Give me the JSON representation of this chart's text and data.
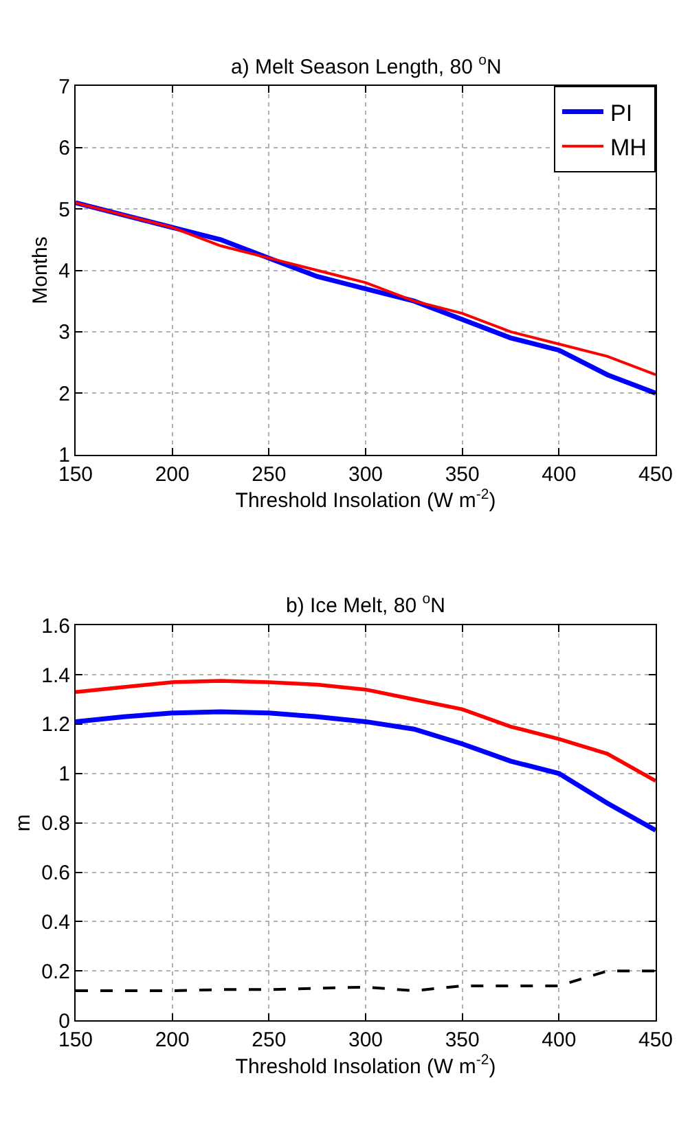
{
  "chart_data": [
    {
      "type": "line",
      "title": "a) Melt Season Length, 80 $^{o}$N",
      "xlabel": "Threshold Insolation (W m$^{-2}$)",
      "ylabel": "Months",
      "x": [
        150,
        175,
        200,
        225,
        250,
        275,
        300,
        325,
        350,
        375,
        400,
        425,
        450
      ],
      "series": [
        {
          "name": "PI",
          "color": "#0000ff",
          "values": [
            5.1,
            4.9,
            4.7,
            4.5,
            4.2,
            3.9,
            3.7,
            3.5,
            3.2,
            2.9,
            2.7,
            2.3,
            2.0
          ]
        },
        {
          "name": "MH",
          "color": "#ff0000",
          "values": [
            5.1,
            4.9,
            4.7,
            4.4,
            4.2,
            4.0,
            3.8,
            3.5,
            3.3,
            3.0,
            2.8,
            2.6,
            2.3
          ]
        }
      ],
      "xlim": [
        150,
        450
      ],
      "xticks": [
        150,
        200,
        250,
        300,
        350,
        400,
        450
      ],
      "ylim": [
        1,
        7
      ],
      "yticks": [
        1,
        2,
        3,
        4,
        5,
        6,
        7
      ],
      "grid": true,
      "legend": "top right",
      "line_style": "solid"
    },
    {
      "type": "line",
      "title": "b) Ice Melt, 80 $^{o}$N",
      "xlabel": "Threshold Insolation (W m$^{-2}$)",
      "ylabel": "m",
      "x": [
        150,
        175,
        200,
        225,
        250,
        275,
        300,
        325,
        350,
        375,
        400,
        425,
        450
      ],
      "series": [
        {
          "color": "#0000ff",
          "values": [
            1.21,
            1.23,
            1.245,
            1.25,
            1.245,
            1.23,
            1.21,
            1.18,
            1.12,
            1.05,
            1.0,
            0.88,
            0.77
          ]
        },
        {
          "color": "#ff0000",
          "values": [
            1.33,
            1.35,
            1.37,
            1.375,
            1.37,
            1.36,
            1.34,
            1.3,
            1.26,
            1.19,
            1.14,
            1.08,
            0.97
          ]
        },
        {
          "color": "#000000",
          "line_style": "dashed",
          "values": [
            0.12,
            0.12,
            0.12,
            0.125,
            0.125,
            0.13,
            0.135,
            0.12,
            0.14,
            0.14,
            0.14,
            0.2,
            0.2
          ]
        }
      ],
      "xlim": [
        150,
        450
      ],
      "xticks": [
        150,
        200,
        250,
        300,
        350,
        400,
        450
      ],
      "ylim": [
        0,
        1.6
      ],
      "yticks": [
        0,
        0.2,
        0.4,
        0.6,
        0.8,
        1,
        1.2,
        1.4,
        1.6
      ],
      "grid": true,
      "line_style": "solid"
    }
  ]
}
